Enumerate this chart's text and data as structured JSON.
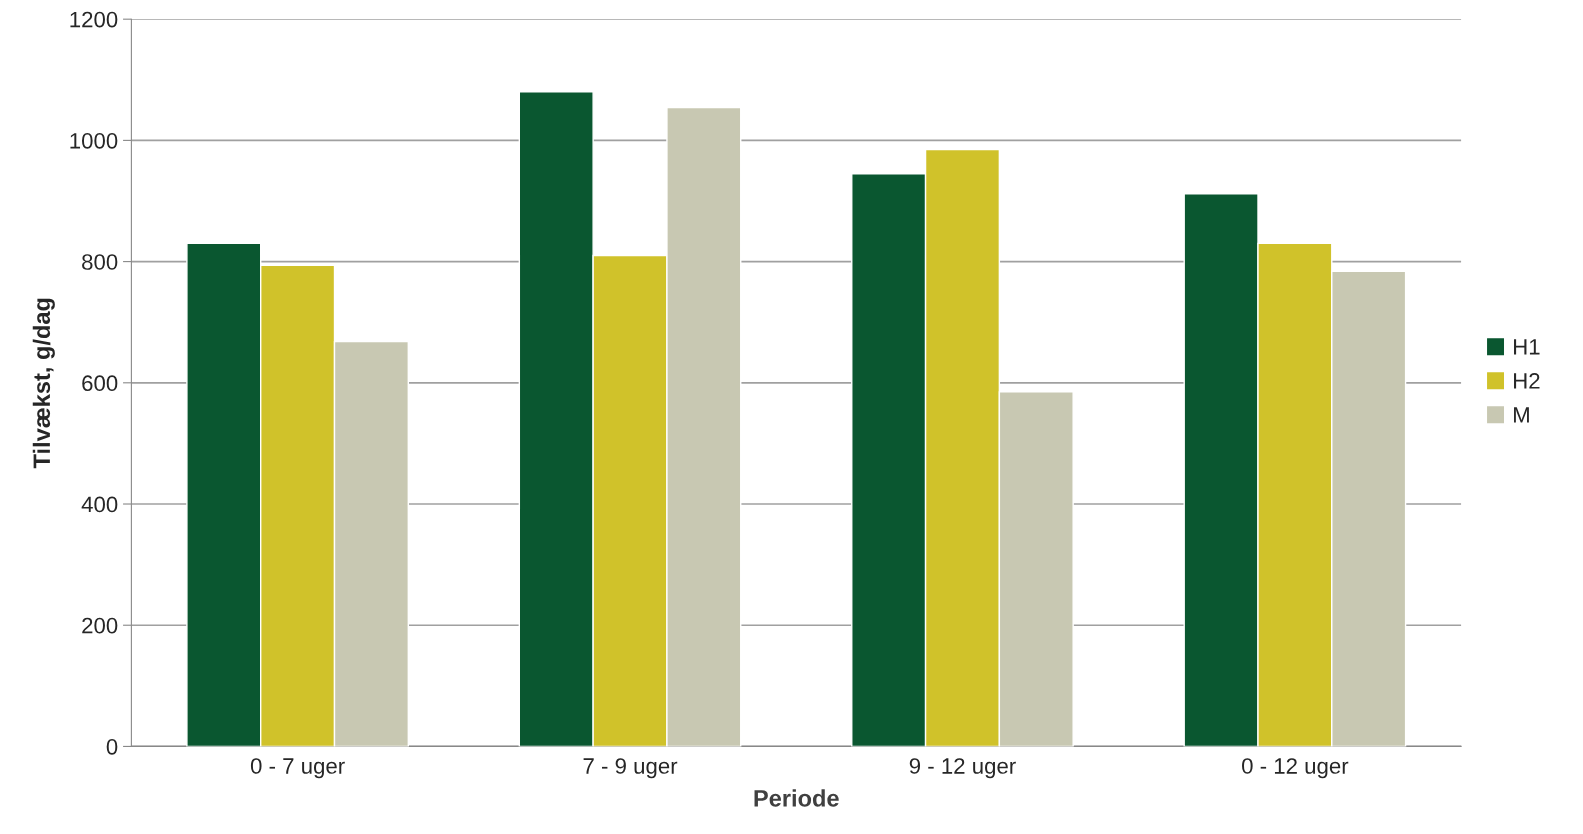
{
  "chart_data": {
    "type": "bar",
    "xlabel": "Periode",
    "ylabel": "Tilvækst, g/dag",
    "categories": [
      "0 - 7 uger",
      "7 - 9 uger",
      "9 - 12 uger",
      "0 - 12 uger"
    ],
    "series": [
      {
        "name": "H1",
        "color": "#0a5730",
        "values": [
          830,
          1080,
          945,
          912
        ]
      },
      {
        "name": "H2",
        "color": "#d0c22a",
        "values": [
          794,
          810,
          985,
          830
        ]
      },
      {
        "name": "M",
        "color": "#c8c8b2",
        "values": [
          668,
          1054,
          585,
          784
        ]
      }
    ],
    "ylim": [
      0,
      1200
    ],
    "yticks": [
      0,
      200,
      400,
      600,
      800,
      1000,
      1200
    ],
    "grid": "y",
    "legend": "right"
  }
}
